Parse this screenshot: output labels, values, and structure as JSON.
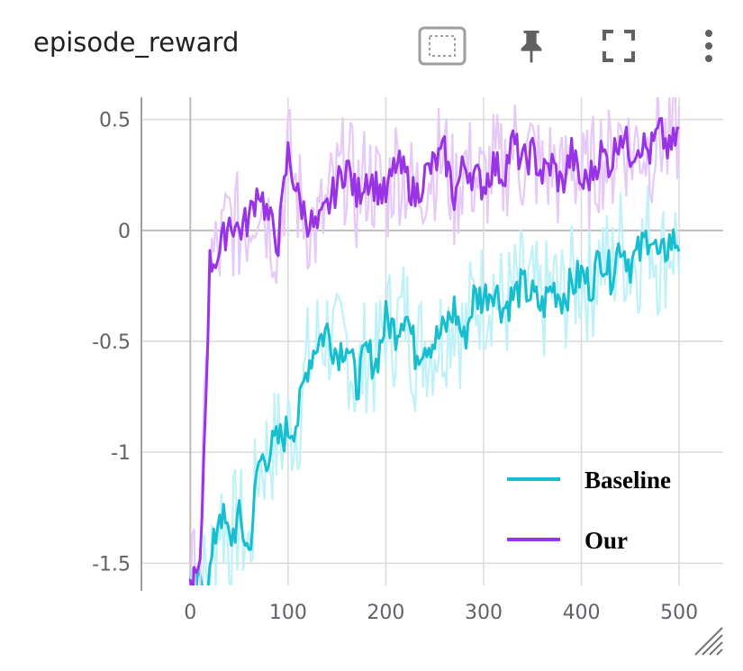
{
  "header": {
    "title": "episode_reward"
  },
  "toolbar": {
    "select_icon": "dashed-select-icon",
    "pin_icon": "pin-icon",
    "fullscreen_icon": "fullscreen-icon",
    "more_icon": "more-vert-icon"
  },
  "colors": {
    "baseline": "#17becf",
    "baseline_raw": "#bff1f9",
    "ours": "#9933e6",
    "ours_raw": "#e6c9f8",
    "grid": "#d9d9d9",
    "axis": "#9e9e9e",
    "zero_line": "#bdbdbd"
  },
  "chart_data": {
    "type": "line",
    "title": "episode_reward",
    "xlim": [
      -50,
      545
    ],
    "ylim": [
      -1.6,
      0.6
    ],
    "x_ticks": [
      0,
      100,
      200,
      300,
      400,
      500
    ],
    "x_tick_labels": [
      "0",
      "100",
      "200",
      "300",
      "400",
      "500"
    ],
    "y_ticks": [
      0.5,
      0,
      -0.5,
      -1,
      -1.5
    ],
    "y_tick_labels": [
      "0.5",
      "0",
      "-0.5",
      "-1",
      "-1.5"
    ],
    "grid": true,
    "legend": {
      "position": "bottom-right"
    },
    "series": [
      {
        "name": "Baseline",
        "x": [
          0,
          10,
          20,
          30,
          40,
          50,
          60,
          70,
          80,
          90,
          100,
          110,
          120,
          130,
          140,
          150,
          160,
          170,
          180,
          190,
          200,
          210,
          220,
          230,
          240,
          250,
          260,
          270,
          280,
          290,
          300,
          310,
          320,
          330,
          340,
          350,
          360,
          370,
          380,
          390,
          400,
          410,
          420,
          430,
          440,
          450,
          460,
          470,
          480,
          490,
          500
        ],
        "values": [
          -1.6,
          -1.6,
          -1.55,
          -1.25,
          -1.4,
          -1.3,
          -1.45,
          -1.05,
          -1.0,
          -0.95,
          -0.9,
          -0.85,
          -0.6,
          -0.5,
          -0.45,
          -0.55,
          -0.5,
          -0.7,
          -0.55,
          -0.6,
          -0.4,
          -0.45,
          -0.35,
          -0.55,
          -0.5,
          -0.5,
          -0.45,
          -0.35,
          -0.5,
          -0.3,
          -0.3,
          -0.25,
          -0.35,
          -0.3,
          -0.25,
          -0.3,
          -0.35,
          -0.25,
          -0.3,
          -0.25,
          -0.2,
          -0.25,
          -0.1,
          -0.2,
          -0.05,
          -0.15,
          -0.1,
          0.0,
          -0.15,
          -0.05,
          -0.05
        ]
      },
      {
        "name": "Our",
        "x": [
          0,
          10,
          20,
          30,
          40,
          50,
          60,
          70,
          80,
          90,
          100,
          110,
          120,
          130,
          140,
          150,
          160,
          170,
          180,
          190,
          200,
          210,
          220,
          230,
          240,
          250,
          260,
          270,
          280,
          290,
          300,
          310,
          320,
          330,
          340,
          350,
          360,
          370,
          380,
          390,
          400,
          410,
          420,
          430,
          440,
          450,
          460,
          470,
          480,
          490,
          500
        ],
        "values": [
          -1.6,
          -1.55,
          -0.15,
          -0.1,
          0.05,
          0.0,
          0.05,
          0.2,
          0.05,
          -0.05,
          0.35,
          0.15,
          0.05,
          0.0,
          0.1,
          0.2,
          0.3,
          0.15,
          0.25,
          0.2,
          0.15,
          0.3,
          0.25,
          0.15,
          0.25,
          0.3,
          0.35,
          0.15,
          0.3,
          0.25,
          0.2,
          0.3,
          0.25,
          0.4,
          0.3,
          0.35,
          0.25,
          0.3,
          0.2,
          0.35,
          0.2,
          0.25,
          0.35,
          0.3,
          0.45,
          0.35,
          0.4,
          0.35,
          0.45,
          0.35,
          0.45
        ]
      }
    ]
  }
}
